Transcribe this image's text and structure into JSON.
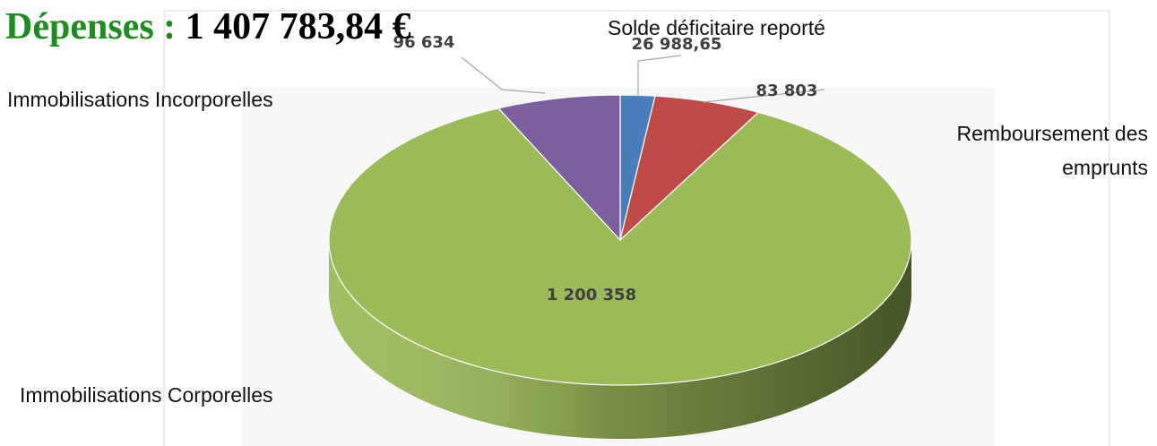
{
  "chart_data": {
    "type": "pie3d",
    "title": "Dépenses :",
    "total": "1 407 783,84 €",
    "categories": [
      "Solde déficitaire reporté",
      "Remboursement des emprunts",
      "Immobilisations Corporelles",
      "Immobilisations Incorporelles"
    ],
    "values": [
      26988.65,
      83803,
      1200358,
      96634
    ],
    "value_labels": [
      "26 988,65",
      "83 803",
      "1 200 358",
      "96 634"
    ],
    "colors": [
      "#4a7ebb",
      "#be4b48",
      "#9bbb59",
      "#7d5fa0"
    ]
  }
}
